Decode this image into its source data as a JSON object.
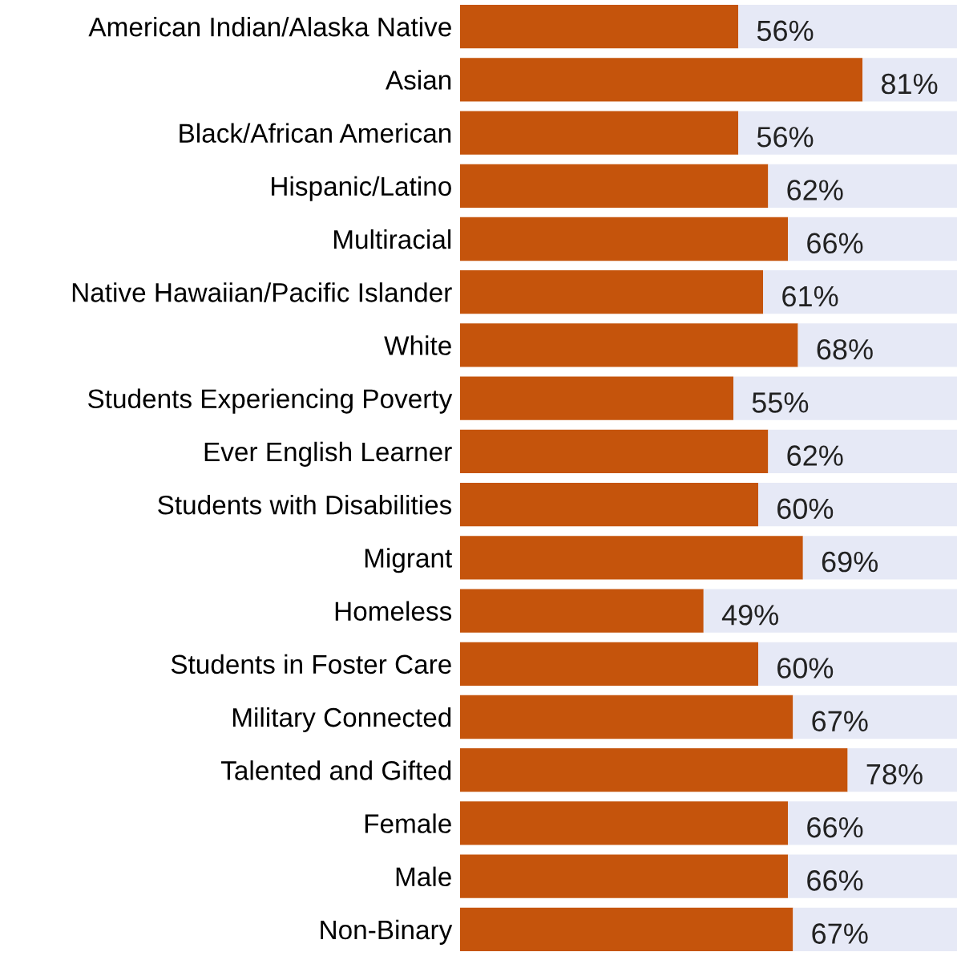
{
  "chart_data": {
    "type": "bar",
    "orientation": "horizontal",
    "stacked": true,
    "xlim": [
      0,
      100
    ],
    "tick_labels": "y",
    "categories": [
      "American Indian/Alaska Native",
      "Asian",
      "Black/African American",
      "Hispanic/Latino",
      "Multiracial",
      "Native Hawaiian/Pacific Islander",
      "White",
      "Students Experiencing Poverty",
      "Ever English Learner",
      "Students with Disabilities",
      "Migrant",
      "Homeless",
      "Students in Foster Care",
      "Military Connected",
      "Talented and Gifted",
      "Female",
      "Male",
      "Non-Binary"
    ],
    "series": [
      {
        "color": "#c5540c",
        "values": [
          56,
          81,
          56,
          62,
          66,
          61,
          68,
          55,
          62,
          60,
          69,
          49,
          60,
          67,
          78,
          66,
          66,
          67
        ],
        "value_labels": [
          "56%",
          "81%",
          "56%",
          "62%",
          "66%",
          "61%",
          "68%",
          "55%",
          "62%",
          "60%",
          "69%",
          "49%",
          "60%",
          "67%",
          "78%",
          "66%",
          "66%",
          "67%"
        ]
      },
      {
        "color": "#e6e9f6",
        "values": [
          44,
          19,
          44,
          38,
          34,
          39,
          32,
          45,
          38,
          40,
          31,
          51,
          40,
          33,
          22,
          34,
          34,
          33
        ]
      }
    ]
  }
}
